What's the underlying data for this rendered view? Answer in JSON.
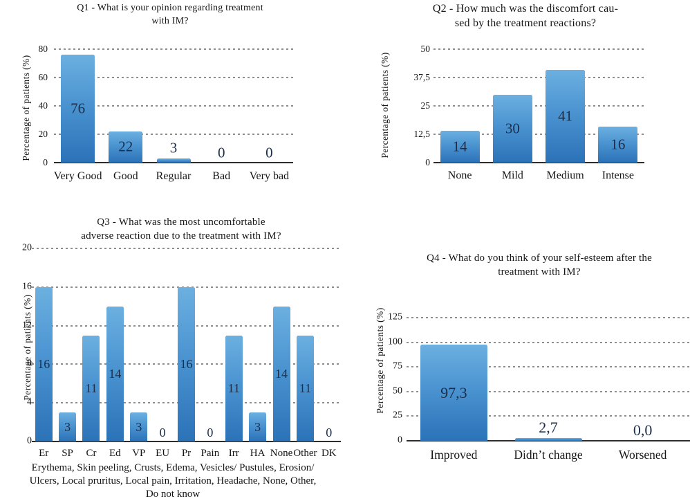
{
  "page": {
    "background": "#ffffff"
  },
  "colors": {
    "bar_gradient_top": "#6cb0e0",
    "bar_gradient_bottom": "#2b72b7",
    "value_label": "#1c2e4a",
    "gridline": "#8d8d8d",
    "axis_line": "#2d2d2d",
    "text": "#141414"
  },
  "chart_data": [
    {
      "type": "bar",
      "title": "Q1 - What is your opinion regarding treatment\nwith IM?",
      "ylabel": "Percentage of patients (%)",
      "categories": [
        "Very Good",
        "Good",
        "Regular",
        "Bad",
        "Very bad"
      ],
      "values": [
        76,
        22,
        3,
        0,
        0
      ],
      "value_labels": [
        "76",
        "22",
        "3",
        "0",
        "0"
      ],
      "ytick_values": [
        0,
        20,
        40,
        60,
        80
      ],
      "ytick_labels": [
        "0",
        "20",
        "40",
        "60",
        "80"
      ],
      "ylim": [
        0,
        80
      ],
      "grid": "horizontal-dashed",
      "legend": "none"
    },
    {
      "type": "bar",
      "title": "Q2 - How much was the discomfort cau-\nsed by the treatment reactions?",
      "ylabel": "Percentage of patients (%)",
      "categories": [
        "None",
        "Mild",
        "Medium",
        "Intense"
      ],
      "values": [
        14,
        30,
        41,
        16
      ],
      "value_labels": [
        "14",
        "30",
        "41",
        "16"
      ],
      "ytick_values": [
        0,
        12.5,
        25,
        37.5,
        50
      ],
      "ytick_labels": [
        "0",
        "12,5",
        "25",
        "37,5",
        "50"
      ],
      "ylim": [
        0,
        50
      ],
      "grid": "horizontal-dashed",
      "legend": "none"
    },
    {
      "type": "bar",
      "title": "Q3 - What was the most uncomfortable\nadverse reaction due to the treatment with IM?",
      "ylabel": "Percentage of patients (%)",
      "categories": [
        "Er",
        "SP",
        "Cr",
        "Ed",
        "VP",
        "EU",
        "Pr",
        "Pain",
        "Irr",
        "HA",
        "None",
        "Other",
        "DK"
      ],
      "values": [
        16,
        3,
        11,
        14,
        3,
        0,
        16,
        0,
        11,
        3,
        14,
        11,
        0
      ],
      "value_labels": [
        "16",
        "3",
        "11",
        "14",
        "3",
        "0",
        "16",
        "0",
        "11",
        "3",
        "14",
        "11",
        "0"
      ],
      "ytick_values": [
        0,
        4,
        8,
        12,
        16,
        20
      ],
      "ytick_labels": [
        "0",
        "4",
        "8",
        "12",
        "16",
        "20"
      ],
      "ylim": [
        0,
        20
      ],
      "grid": "horizontal-dashed",
      "legend": "none",
      "footnote": "Erythema, Skin peeling, Crusts, Edema, Vesicles/ Pustules, Erosion/\nUlcers, Local pruritus, Local pain, Irritation, Headache, None, Other,\nDo not know"
    },
    {
      "type": "bar",
      "title": "Q4 - What do you think of your self-esteem after the\ntreatment with IM?",
      "ylabel": "Percentage of patients (%)",
      "categories": [
        "Improved",
        "Didn’t change",
        "Worsened"
      ],
      "values": [
        97.3,
        2.7,
        0
      ],
      "value_labels": [
        "97,3",
        "2,7",
        "0,0"
      ],
      "ytick_values": [
        0,
        25,
        50,
        75,
        100,
        125
      ],
      "ytick_labels": [
        "0",
        "25",
        "50",
        "75",
        "100",
        "125"
      ],
      "ylim": [
        0,
        125
      ],
      "grid": "horizontal-dashed",
      "legend": "none"
    }
  ]
}
